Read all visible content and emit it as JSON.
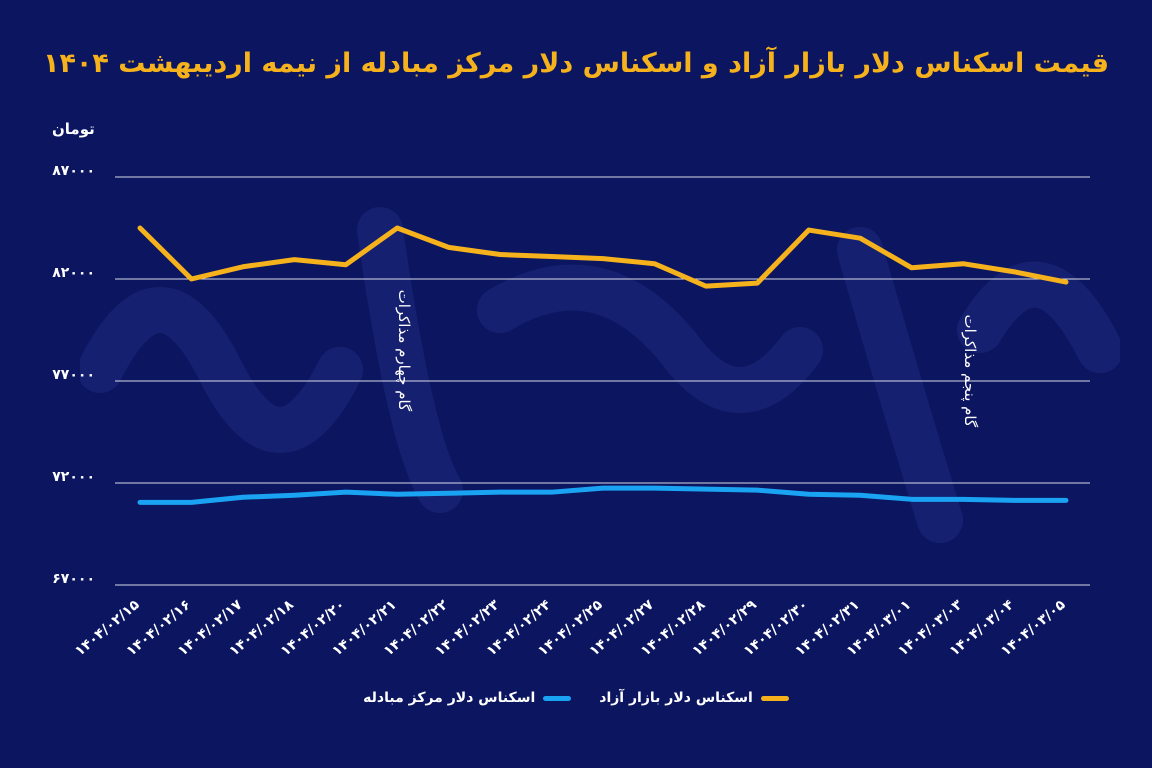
{
  "chart_data": {
    "type": "line",
    "title": "قیمت اسکناس دلار بازار آزاد و اسکناس دلار مرکز مبادله از نیمه اردیبهشت ۱۴۰۴",
    "ylabel": "تومان",
    "xlabel": "",
    "ylim": [
      67000,
      87000
    ],
    "yticks": [
      67000,
      72000,
      77000,
      82000,
      87000
    ],
    "ytick_labels": [
      "۶۷۰۰۰",
      "۷۲۰۰۰",
      "۷۷۰۰۰",
      "۸۲۰۰۰",
      "۸۷۰۰۰"
    ],
    "categories": [
      "۱۴۰۴/۰۲/۱۵",
      "۱۴۰۴/۰۲/۱۶",
      "۱۴۰۴/۰۲/۱۷",
      "۱۴۰۴/۰۲/۱۸",
      "۱۴۰۴/۰۲/۲۰",
      "۱۴۰۴/۰۲/۲۱",
      "۱۴۰۴/۰۲/۲۲",
      "۱۴۰۴/۰۲/۲۳",
      "۱۴۰۴/۰۲/۲۴",
      "۱۴۰۴/۰۲/۲۵",
      "۱۴۰۴/۰۲/۲۷",
      "۱۴۰۴/۰۲/۲۸",
      "۱۴۰۴/۰۲/۲۹",
      "۱۴۰۴/۰۲/۳۰",
      "۱۴۰۴/۰۲/۳۱",
      "۱۴۰۴/۰۳/۰۱",
      "۱۴۰۴/۰۳/۰۳",
      "۱۴۰۴/۰۳/۰۴",
      "۱۴۰۴/۰۳/۰۵"
    ],
    "series": [
      {
        "name": "اسکناس دلار بازار آزاد",
        "color": "#f5b21c",
        "values": [
          84500,
          82000,
          82600,
          82950,
          82700,
          84500,
          83550,
          83200,
          83100,
          83000,
          82750,
          81650,
          81800,
          84400,
          84000,
          82550,
          82750,
          82350,
          81850
        ]
      },
      {
        "name": "اسکناس دلار مرکز مبادله",
        "color": "#1aa3f2",
        "values": [
          71050,
          71050,
          71300,
          71400,
          71550,
          71450,
          71500,
          71550,
          71550,
          71750,
          71750,
          71700,
          71650,
          71450,
          71400,
          71200,
          71200,
          71150,
          71150
        ]
      }
    ],
    "annotations": [
      {
        "text": "گام چهارم مذاکرات",
        "x_category": "۱۴۰۴/۰۲/۲۱",
        "y": 78500
      },
      {
        "text": "گام پنجم مذاکرات",
        "x_category": "۱۴۰۴/۰۳/۰۳",
        "y": 77500
      }
    ],
    "grid": true,
    "legend_position": "bottom"
  }
}
